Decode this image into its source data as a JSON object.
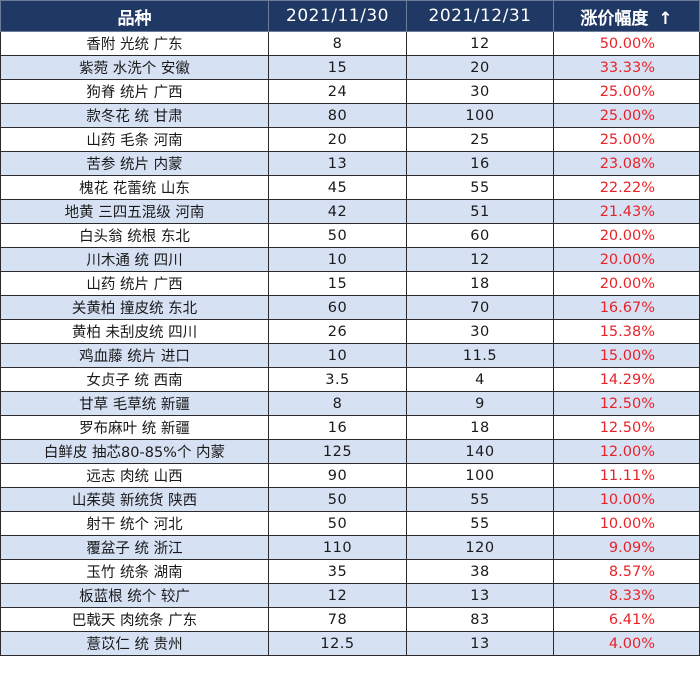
{
  "table": {
    "headers": {
      "variety": "品种",
      "date1": "2021/11/30",
      "date2": "2021/12/31",
      "change": "涨价幅度",
      "sort_arrow": "↑"
    },
    "rows": [
      {
        "name": "香附  光统  广东",
        "v1": "8",
        "v2": "12",
        "pct": "50.00%"
      },
      {
        "name": "紫菀  水洗个  安徽",
        "v1": "15",
        "v2": "20",
        "pct": "33.33%"
      },
      {
        "name": "狗脊  统片  广西",
        "v1": "24",
        "v2": "30",
        "pct": "25.00%"
      },
      {
        "name": "款冬花  统  甘肃",
        "v1": "80",
        "v2": "100",
        "pct": "25.00%"
      },
      {
        "name": "山药  毛条  河南",
        "v1": "20",
        "v2": "25",
        "pct": "25.00%"
      },
      {
        "name": "苦参  统片  内蒙",
        "v1": "13",
        "v2": "16",
        "pct": "23.08%"
      },
      {
        "name": "槐花  花蕾统  山东",
        "v1": "45",
        "v2": "55",
        "pct": "22.22%"
      },
      {
        "name": "地黄  三四五混级  河南",
        "v1": "42",
        "v2": "51",
        "pct": "21.43%"
      },
      {
        "name": "白头翁  统根  东北",
        "v1": "50",
        "v2": "60",
        "pct": "20.00%"
      },
      {
        "name": "川木通  统  四川",
        "v1": "10",
        "v2": "12",
        "pct": "20.00%"
      },
      {
        "name": "山药  统片  广西",
        "v1": "15",
        "v2": "18",
        "pct": "20.00%"
      },
      {
        "name": "关黄柏  撞皮统  东北",
        "v1": "60",
        "v2": "70",
        "pct": "16.67%"
      },
      {
        "name": "黄柏  未刮皮统  四川",
        "v1": "26",
        "v2": "30",
        "pct": "15.38%"
      },
      {
        "name": "鸡血藤  统片  进口",
        "v1": "10",
        "v2": "11.5",
        "pct": "15.00%"
      },
      {
        "name": "女贞子  统  西南",
        "v1": "3.5",
        "v2": "4",
        "pct": "14.29%"
      },
      {
        "name": "甘草  毛草统  新疆",
        "v1": "8",
        "v2": "9",
        "pct": "12.50%"
      },
      {
        "name": "罗布麻叶  统  新疆",
        "v1": "16",
        "v2": "18",
        "pct": "12.50%"
      },
      {
        "name": "白鲜皮  抽芯80-85%个  内蒙",
        "v1": "125",
        "v2": "140",
        "pct": "12.00%"
      },
      {
        "name": "远志  肉统  山西",
        "v1": "90",
        "v2": "100",
        "pct": "11.11%"
      },
      {
        "name": "山茱萸  新统货  陕西",
        "v1": "50",
        "v2": "55",
        "pct": "10.00%"
      },
      {
        "name": "射干  统个  河北",
        "v1": "50",
        "v2": "55",
        "pct": "10.00%"
      },
      {
        "name": "覆盆子  统  浙江",
        "v1": "110",
        "v2": "120",
        "pct": "9.09%"
      },
      {
        "name": "玉竹  统条  湖南",
        "v1": "35",
        "v2": "38",
        "pct": "8.57%"
      },
      {
        "name": "板蓝根  统个  较广",
        "v1": "12",
        "v2": "13",
        "pct": "8.33%"
      },
      {
        "name": "巴戟天  肉统条  广东",
        "v1": "78",
        "v2": "83",
        "pct": "6.41%"
      },
      {
        "name": "薏苡仁  统  贵州",
        "v1": "12.5",
        "v2": "13",
        "pct": "4.00%"
      }
    ]
  },
  "colors": {
    "header_bg": "#1f3864",
    "row_alt_bg": "#d6e2f4",
    "pct_text": "#e8232a"
  }
}
